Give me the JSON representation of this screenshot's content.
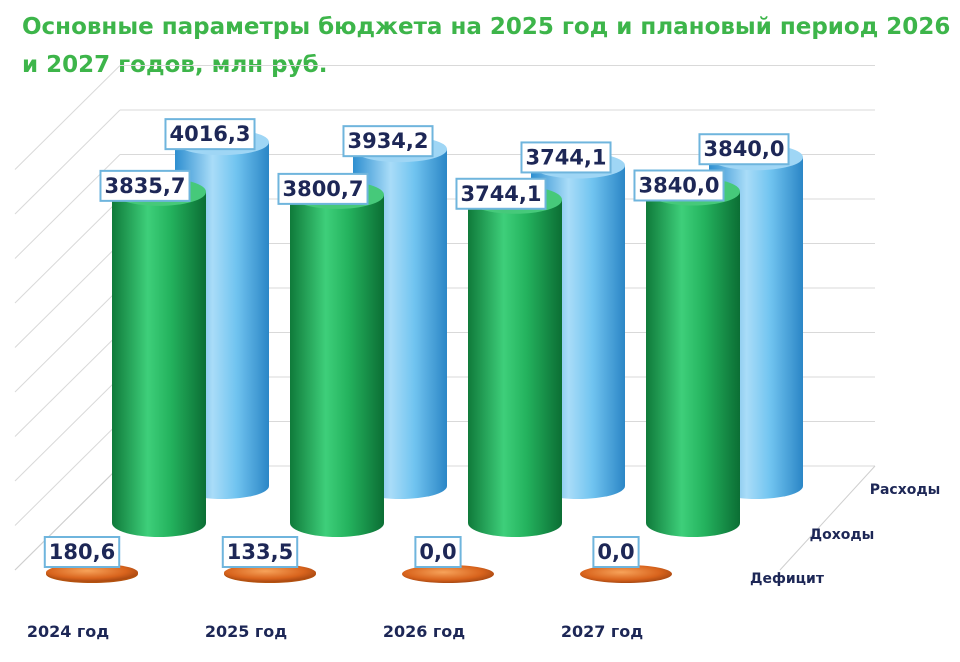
{
  "chart_data": {
    "type": "bar",
    "title": "Основные параметры бюджета на 2025 год и плановый период 2026 и 2027 годов, млн руб.",
    "categories": [
      "2024 год",
      "2025 год",
      "2026 год",
      "2027 год"
    ],
    "value_labels": {
      "expenses": [
        "4016,3",
        "3934,2",
        "3744,1",
        "3840,0"
      ],
      "income": [
        "3835,7",
        "3800,7",
        "3744,1",
        "3840,0"
      ],
      "deficit": [
        "180,6",
        "133,5",
        "0,0",
        "0,0"
      ]
    },
    "series": [
      {
        "name": "Расходы",
        "values": [
          4016.3,
          3934.2,
          3744.1,
          3840.0
        ],
        "color": "#5fb8ea"
      },
      {
        "name": "Доходы",
        "values": [
          3835.7,
          3800.7,
          3744.1,
          3840.0
        ],
        "color": "#1f9c4e"
      },
      {
        "name": "Дефицит",
        "values": [
          180.6,
          133.5,
          0.0,
          0.0
        ],
        "color": "#d9641d"
      }
    ],
    "ylim": [
      0,
      4500
    ],
    "grid": true,
    "legend": "right, along depth axis"
  }
}
